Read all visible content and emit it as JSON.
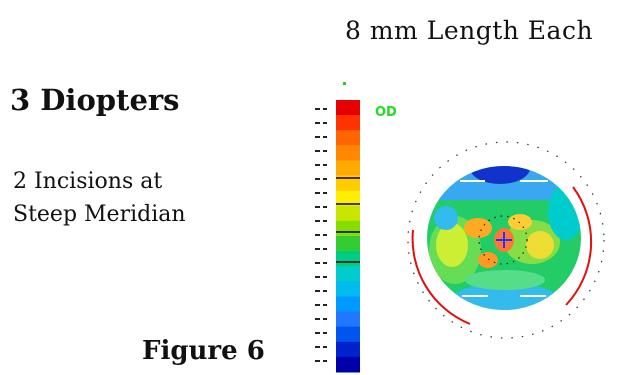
{
  "caption_top": "8 mm Length Each",
  "title": "3 Diopters",
  "incision_line1": "2 Incisions at",
  "incision_line2": "Steep Meridian",
  "figure_label": "Figure 6",
  "eye_label": "OD",
  "colors": {
    "scale": [
      "#e60000",
      "#ff3300",
      "#ff6600",
      "#ff8800",
      "#ffaa00",
      "#ffcc00",
      "#ffee00",
      "#c8e600",
      "#88dd00",
      "#33cc33",
      "#00cc88",
      "#00cccc",
      "#00bbee",
      "#0099ff",
      "#2277ff",
      "#0055ee",
      "#0022cc",
      "#0000aa"
    ],
    "arc": "#e01010",
    "cross": "#2233ff"
  }
}
